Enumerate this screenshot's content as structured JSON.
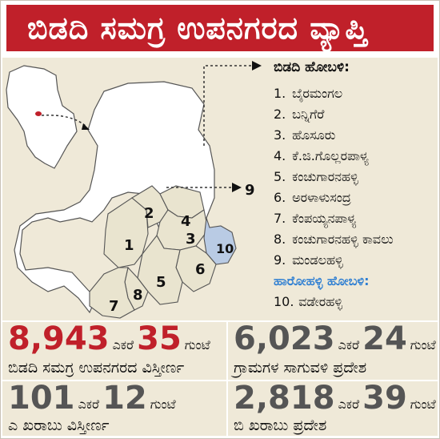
{
  "title": "ಬಿಡದಿ ಸಮಗ್ರ ಉಪನಗರದ ವ್ಯಾಪ್ತಿ",
  "map": {
    "region_labels": [
      "1",
      "2",
      "3",
      "4",
      "5",
      "6",
      "7",
      "8",
      "9",
      "10"
    ],
    "colors": {
      "region_fill": "#e9e4cf",
      "highlight_fill": "#b9cbe4",
      "outline": "#555555",
      "background": "#ffffff"
    }
  },
  "legend": {
    "heading": "ಬಿಡದಿ ಹೋಬಳಿ:",
    "items": [
      {
        "num": "1.",
        "name": "ಬೈರಮಂಗಲ"
      },
      {
        "num": "2.",
        "name": "ಬನ್ನಿಗೆರೆ"
      },
      {
        "num": "3.",
        "name": "ಹೊಸೂರು"
      },
      {
        "num": "4.",
        "name": "ಕೆ.ಜಿ.ಗೊಲ್ಲರಪಾಳ್ಯ"
      },
      {
        "num": "5.",
        "name": "ಕಂಚುಗಾರನಹಳ್ಳಿ"
      },
      {
        "num": "6.",
        "name": "ಅರಳಾಳುಸಂದ್ರ"
      },
      {
        "num": "7.",
        "name": "ಕೆಂಪಯ್ಯನಪಾಳ್ಯ"
      },
      {
        "num": "8.",
        "name": "ಕಂಚುಗಾರನಹಳ್ಳಿ ಕಾವಲು"
      },
      {
        "num": "9.",
        "name": "ಮಂಡಲಹಳ್ಳಿ"
      }
    ],
    "heading2": "ಹಾರೋಹಳ್ಳಿ ಹೋಬಳಿ:",
    "items2": [
      {
        "num": "10.",
        "name": "ವಡೇರಹಳ್ಳಿ"
      }
    ]
  },
  "stats": {
    "total": {
      "acres": "8,943",
      "acre_unit": "ಎಕರೆ",
      "guntas": "35",
      "gunta_unit": "ಗುಂಟೆ",
      "label": "ಬಿಡದಿ ಸಮಗ್ರ ಉಪನಗರದ ವಿಸ್ತೀರ್ಣ"
    },
    "village": {
      "acres": "6,023",
      "acre_unit": "ಎಕರೆ",
      "guntas": "24",
      "gunta_unit": "ಗುಂಟೆ",
      "label": "ಗ್ರಾಮಗಳ ಸಾಗುವಳಿ ಪ್ರದೇಶ"
    },
    "a_kharab": {
      "acres": "101",
      "acre_unit": "ಎಕರೆ",
      "guntas": "12",
      "gunta_unit": "ಗುಂಟೆ",
      "label": "ಎ ಖರಾಬು ವಿಸ್ತೀರ್ಣ"
    },
    "b_kharab": {
      "acres": "2,818",
      "acre_unit": "ಎಕರೆ",
      "guntas": "39",
      "gunta_unit": "ಗುಂಟೆ",
      "label": "ಬಿ ಖರಾಬು ಪ್ರದೇಶ"
    }
  },
  "colors": {
    "accent_red": "#c0202a",
    "panel_bg": "#efe9d8",
    "blue_heading": "#2f7fd2",
    "gray_number": "#555555"
  }
}
